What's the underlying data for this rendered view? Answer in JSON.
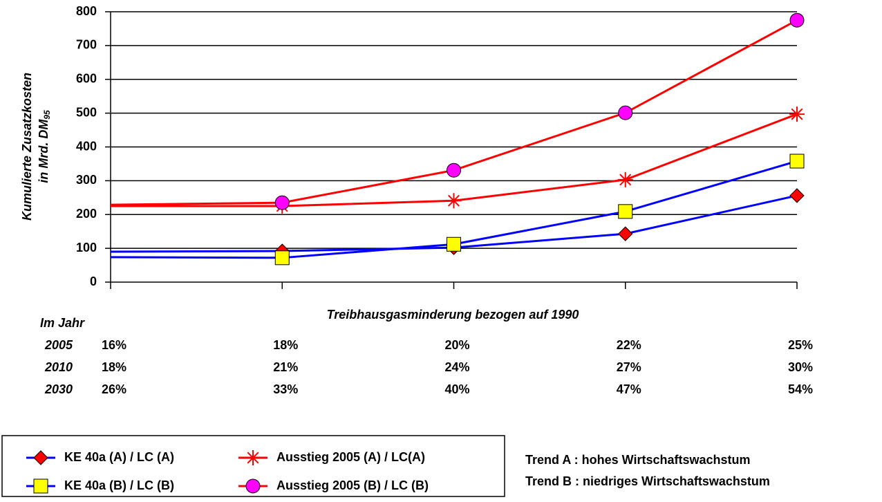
{
  "chart_data": {
    "type": "line",
    "ylabel": "Kumulierte Zusatzkosten",
    "ylabel2": "in Mrd. DM",
    "ylabel2_sub": "95",
    "xlabel": "Treibhausgasminderung bezogen auf 1990",
    "ylim": [
      0,
      800
    ],
    "yticks": [
      0,
      100,
      200,
      300,
      400,
      500,
      600,
      700,
      800
    ],
    "grid": true,
    "table": {
      "header": "Im Jahr",
      "rows": [
        {
          "year": "2005",
          "values": [
            "16%",
            "18%",
            "20%",
            "22%",
            "25%"
          ]
        },
        {
          "year": "2010",
          "values": [
            "18%",
            "21%",
            "24%",
            "27%",
            "30%"
          ]
        },
        {
          "year": "2030",
          "values": [
            "26%",
            "33%",
            "40%",
            "47%",
            "54%"
          ]
        }
      ]
    },
    "series": [
      {
        "name": "KE 40a (A) / LC (A)",
        "color": "#0000ff",
        "marker": "diamond",
        "marker_color": "#ff0000",
        "values": [
          90,
          92,
          102,
          143,
          256
        ]
      },
      {
        "name": "KE 40a (B) / LC (B)",
        "color": "#0000ff",
        "marker": "square",
        "marker_color": "#ffff00",
        "values": [
          74,
          72,
          112,
          209,
          358
        ]
      },
      {
        "name": "Ausstieg 2005 (A) / LC(A)",
        "color": "#ff0000",
        "marker": "star",
        "marker_color": "#ff0000",
        "values": [
          225,
          225,
          241,
          303,
          497
        ]
      },
      {
        "name": "Ausstieg 2005 (B) / LC (B)",
        "color": "#ff0000",
        "marker": "circle",
        "marker_color": "#ff00ff",
        "values": [
          229,
          235,
          331,
          501,
          775
        ]
      }
    ],
    "annotations": [
      "Trend A : hohes Wirtschaftswachstum",
      "Trend B : niedriges Wirtschaftswachstum"
    ]
  }
}
